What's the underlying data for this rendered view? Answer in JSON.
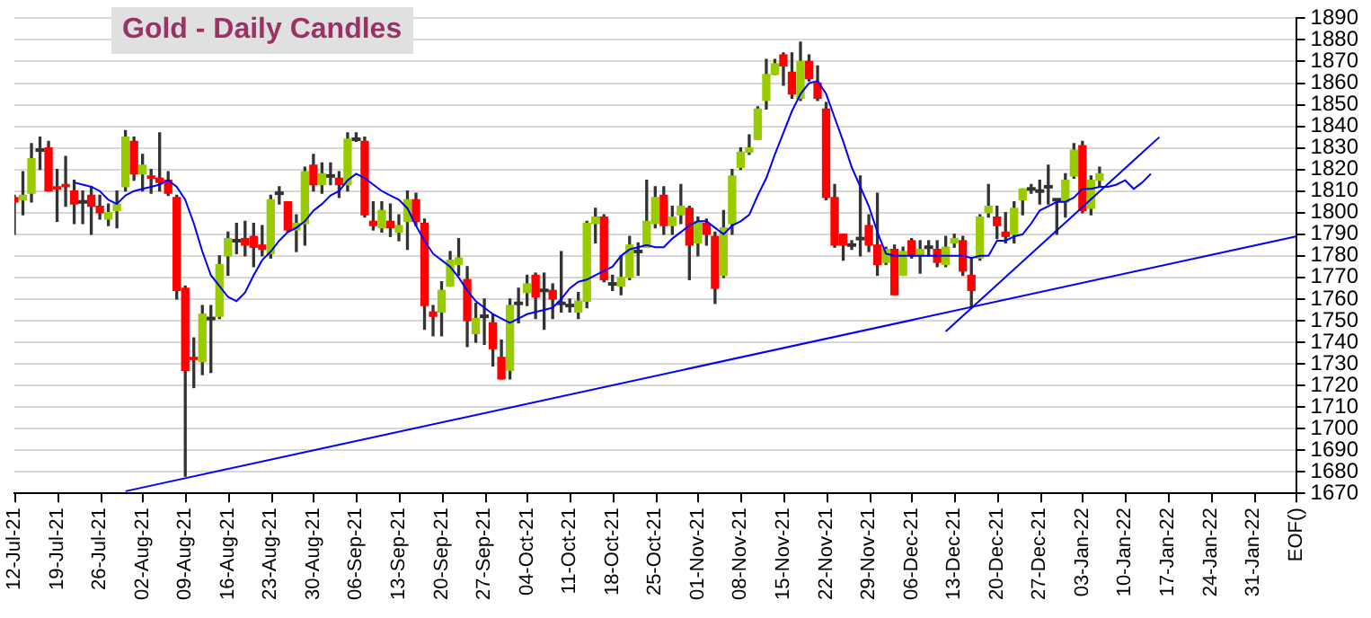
{
  "chart_data": {
    "type": "candlestick",
    "title": "Gold - Daily Candles",
    "categories": [
      "12-Jul-21",
      null,
      null,
      null,
      null,
      "19-Jul-21",
      null,
      null,
      null,
      null,
      "26-Jul-21",
      null,
      null,
      null,
      null,
      "02-Aug-21",
      null,
      null,
      null,
      null,
      "09-Aug-21",
      null,
      null,
      null,
      null,
      "16-Aug-21",
      null,
      null,
      null,
      null,
      "23-Aug-21",
      null,
      null,
      null,
      null,
      "30-Aug-21",
      null,
      null,
      null,
      null,
      "06-Sep-21",
      null,
      null,
      null,
      null,
      "13-Sep-21",
      null,
      null,
      null,
      null,
      "20-Sep-21",
      null,
      null,
      null,
      null,
      "27-Sep-21",
      null,
      null,
      null,
      null,
      "04-Oct-21",
      null,
      null,
      null,
      null,
      "11-Oct-21",
      null,
      null,
      null,
      null,
      "18-Oct-21",
      null,
      null,
      null,
      null,
      "25-Oct-21",
      null,
      null,
      null,
      null,
      "01-Nov-21",
      null,
      null,
      null,
      null,
      "08-Nov-21",
      null,
      null,
      null,
      null,
      "15-Nov-21",
      null,
      null,
      null,
      null,
      "22-Nov-21",
      null,
      null,
      null,
      null,
      "29-Nov-21",
      null,
      null,
      null,
      null,
      "06-Dec-21",
      null,
      null,
      null,
      null,
      "13-Dec-21",
      null,
      null,
      null,
      null,
      "20-Dec-21",
      null,
      null,
      null,
      null,
      "27-Dec-21",
      null,
      null,
      null,
      null,
      "03-Jan-22",
      null,
      null,
      null,
      null,
      "10-Jan-22",
      null,
      null,
      null,
      null,
      "17-Jan-22",
      null,
      null,
      null,
      null,
      "24-Jan-22",
      null,
      null,
      null,
      null,
      "31-Jan-22",
      null,
      null,
      null,
      null,
      "EOF()"
    ],
    "ohlc": [
      [
        1807,
        1808,
        1790,
        1805
      ],
      [
        1806,
        1819,
        1799,
        1808
      ],
      [
        1809,
        1832,
        1805,
        1825
      ],
      [
        1829,
        1835,
        1820,
        1829
      ],
      [
        1830,
        1833,
        1810,
        1810
      ],
      [
        1812,
        1820,
        1796,
        1811
      ],
      [
        1813,
        1826,
        1803,
        1812
      ],
      [
        1810,
        1815,
        1795,
        1804
      ],
      [
        1805,
        1810,
        1795,
        1805
      ],
      [
        1808,
        1812,
        1790,
        1803
      ],
      [
        1803,
        1808,
        1797,
        1800
      ],
      [
        1797,
        1804,
        1794,
        1800
      ],
      [
        1801,
        1810,
        1793,
        1804
      ],
      [
        1812,
        1838,
        1810,
        1835
      ],
      [
        1833,
        1835,
        1815,
        1818
      ],
      [
        1818,
        1827,
        1810,
        1822
      ],
      [
        1817,
        1820,
        1809,
        1816
      ],
      [
        1816,
        1837,
        1810,
        1814
      ],
      [
        1815,
        1819,
        1808,
        1809
      ],
      [
        1807,
        1808,
        1760,
        1764
      ],
      [
        1765,
        1766,
        1678,
        1727
      ],
      [
        1733,
        1742,
        1719,
        1732
      ],
      [
        1731,
        1757,
        1725,
        1753
      ],
      [
        1751,
        1757,
        1726,
        1751
      ],
      [
        1752,
        1780,
        1751,
        1776
      ],
      [
        1780,
        1791,
        1771,
        1788
      ],
      [
        1787,
        1795,
        1781,
        1787
      ],
      [
        1788,
        1796,
        1780,
        1785
      ],
      [
        1789,
        1795,
        1775,
        1784
      ],
      [
        1785,
        1794,
        1780,
        1783
      ],
      [
        1781,
        1808,
        1779,
        1806
      ],
      [
        1809,
        1812,
        1804,
        1809
      ],
      [
        1805,
        1805,
        1791,
        1792
      ],
      [
        1792,
        1799,
        1782,
        1795
      ],
      [
        1795,
        1821,
        1785,
        1819
      ],
      [
        1822,
        1827,
        1810,
        1813
      ],
      [
        1813,
        1823,
        1809,
        1818
      ],
      [
        1817,
        1823,
        1813,
        1817
      ],
      [
        1816,
        1819,
        1807,
        1813
      ],
      [
        1813,
        1837,
        1810,
        1834
      ],
      [
        1834,
        1837,
        1833,
        1834
      ],
      [
        1833,
        1835,
        1798,
        1799
      ],
      [
        1796,
        1805,
        1792,
        1794
      ],
      [
        1793,
        1805,
        1791,
        1801
      ],
      [
        1796,
        1804,
        1789,
        1793
      ],
      [
        1791,
        1799,
        1787,
        1794
      ],
      [
        1796,
        1810,
        1783,
        1806
      ],
      [
        1806,
        1809,
        1794,
        1796
      ],
      [
        1795,
        1797,
        1746,
        1757
      ],
      [
        1754,
        1757,
        1743,
        1752
      ],
      [
        1754,
        1768,
        1743,
        1764
      ],
      [
        1766,
        1782,
        1766,
        1778
      ],
      [
        1776,
        1788,
        1771,
        1779
      ],
      [
        1769,
        1775,
        1738,
        1750
      ],
      [
        1744,
        1758,
        1740,
        1751
      ],
      [
        1752,
        1760,
        1739,
        1752
      ],
      [
        1749,
        1753,
        1729,
        1737
      ],
      [
        1733,
        1741,
        1723,
        1723
      ],
      [
        1727,
        1760,
        1723,
        1757
      ],
      [
        1758,
        1765,
        1749,
        1758
      ],
      [
        1763,
        1771,
        1757,
        1767
      ],
      [
        1771,
        1772,
        1751,
        1761
      ],
      [
        1764,
        1772,
        1746,
        1764
      ],
      [
        1764,
        1767,
        1751,
        1760
      ],
      [
        1758,
        1782,
        1754,
        1758
      ],
      [
        1757,
        1760,
        1754,
        1757
      ],
      [
        1754,
        1763,
        1751,
        1759
      ],
      [
        1759,
        1796,
        1756,
        1795
      ],
      [
        1795,
        1802,
        1786,
        1798
      ],
      [
        1798,
        1799,
        1768,
        1769
      ],
      [
        1767,
        1771,
        1764,
        1767
      ],
      [
        1766,
        1780,
        1762,
        1770
      ],
      [
        1770,
        1789,
        1769,
        1785
      ],
      [
        1782,
        1786,
        1771,
        1782
      ],
      [
        1784,
        1815,
        1784,
        1796
      ],
      [
        1795,
        1812,
        1793,
        1807
      ],
      [
        1808,
        1812,
        1790,
        1794
      ],
      [
        1794,
        1803,
        1790,
        1798
      ],
      [
        1799,
        1813,
        1795,
        1803
      ],
      [
        1802,
        1803,
        1769,
        1785
      ],
      [
        1786,
        1798,
        1780,
        1796
      ],
      [
        1795,
        1797,
        1785,
        1790
      ],
      [
        1789,
        1791,
        1758,
        1765
      ],
      [
        1771,
        1801,
        1770,
        1793
      ],
      [
        1795,
        1820,
        1790,
        1817
      ],
      [
        1821,
        1830,
        1820,
        1828
      ],
      [
        1828,
        1836,
        1827,
        1830
      ],
      [
        1834,
        1849,
        1834,
        1848
      ],
      [
        1852,
        1871,
        1848,
        1864
      ],
      [
        1864,
        1871,
        1864,
        1869
      ],
      [
        1873,
        1874,
        1859,
        1868
      ],
      [
        1865,
        1874,
        1853,
        1855
      ],
      [
        1853,
        1879,
        1852,
        1870
      ],
      [
        1870,
        1873,
        1861,
        1862
      ],
      [
        1860,
        1868,
        1852,
        1853
      ],
      [
        1848,
        1851,
        1806,
        1807
      ],
      [
        1807,
        1813,
        1784,
        1785
      ],
      [
        1790,
        1790,
        1778,
        1785
      ],
      [
        1785,
        1787,
        1783,
        1785
      ],
      [
        1788,
        1817,
        1780,
        1788
      ],
      [
        1794,
        1799,
        1782,
        1785
      ],
      [
        1785,
        1809,
        1771,
        1776
      ],
      [
        1777,
        1784,
        1776,
        1783
      ],
      [
        1783,
        1785,
        1762,
        1762
      ],
      [
        1771,
        1784,
        1771,
        1782
      ],
      [
        1787,
        1788,
        1779,
        1780
      ],
      [
        1780,
        1787,
        1772,
        1783
      ],
      [
        1784,
        1787,
        1780,
        1784
      ],
      [
        1783,
        1787,
        1775,
        1777
      ],
      [
        1776,
        1789,
        1775,
        1784
      ],
      [
        1786,
        1790,
        1784,
        1788
      ],
      [
        1787,
        1789,
        1771,
        1773
      ],
      [
        1771,
        1779,
        1756,
        1764
      ],
      [
        1779,
        1799,
        1778,
        1798
      ],
      [
        1800,
        1813,
        1798,
        1803
      ],
      [
        1798,
        1803,
        1788,
        1794
      ],
      [
        1791,
        1800,
        1786,
        1789
      ],
      [
        1790,
        1805,
        1786,
        1802
      ],
      [
        1806,
        1811,
        1799,
        1811
      ],
      [
        1811,
        1813,
        1809,
        1811
      ],
      [
        1810,
        1815,
        1804,
        1810
      ],
      [
        1812,
        1822,
        1804,
        1812
      ],
      [
        1806,
        1806,
        1790,
        1806
      ],
      [
        1805,
        1818,
        1798,
        1815
      ],
      [
        1817,
        1832,
        1816,
        1829
      ],
      [
        1831,
        1833,
        1800,
        1801
      ],
      [
        1802,
        1817,
        1799,
        1815
      ],
      [
        1815,
        1821,
        1812,
        1818
      ],
      null,
      null,
      null,
      null,
      null,
      null,
      null,
      null,
      null,
      null,
      null,
      null,
      null,
      null,
      null,
      null,
      null,
      null,
      null,
      null,
      null,
      null,
      null
    ],
    "colors": [
      "#ff0000",
      "#99cc00",
      "#99cc00",
      "#333333",
      "#ff0000",
      "#ff0000",
      "#ff0000",
      "#ff0000",
      "#333333",
      "#ff0000",
      "#ff0000",
      "#99cc00",
      "#99cc00",
      "#99cc00",
      "#ff0000",
      "#99cc00",
      "#ff0000",
      "#ff0000",
      "#ff0000",
      "#ff0000",
      "#ff0000",
      "#ff0000",
      "#99cc00",
      "#333333",
      "#99cc00",
      "#99cc00",
      "#333333",
      "#ff0000",
      "#ff0000",
      "#ff0000",
      "#99cc00",
      "#333333",
      "#ff0000",
      "#99cc00",
      "#99cc00",
      "#ff0000",
      "#99cc00",
      "#333333",
      "#ff0000",
      "#99cc00",
      "#333333",
      "#ff0000",
      "#ff0000",
      "#99cc00",
      "#ff0000",
      "#99cc00",
      "#99cc00",
      "#ff0000",
      "#ff0000",
      "#ff0000",
      "#99cc00",
      "#99cc00",
      "#99cc00",
      "#ff0000",
      "#99cc00",
      "#333333",
      "#ff0000",
      "#ff0000",
      "#99cc00",
      "#333333",
      "#99cc00",
      "#ff0000",
      "#333333",
      "#ff0000",
      "#333333",
      "#333333",
      "#99cc00",
      "#99cc00",
      "#99cc00",
      "#ff0000",
      "#333333",
      "#99cc00",
      "#99cc00",
      "#333333",
      "#99cc00",
      "#99cc00",
      "#ff0000",
      "#99cc00",
      "#99cc00",
      "#ff0000",
      "#99cc00",
      "#ff0000",
      "#ff0000",
      "#99cc00",
      "#99cc00",
      "#99cc00",
      "#99cc00",
      "#99cc00",
      "#99cc00",
      "#99cc00",
      "#ff0000",
      "#ff0000",
      "#99cc00",
      "#ff0000",
      "#ff0000",
      "#ff0000",
      "#ff0000",
      "#ff0000",
      "#333333",
      "#333333",
      "#ff0000",
      "#ff0000",
      "#99cc00",
      "#ff0000",
      "#99cc00",
      "#ff0000",
      "#99cc00",
      "#333333",
      "#ff0000",
      "#99cc00",
      "#99cc00",
      "#ff0000",
      "#ff0000",
      "#99cc00",
      "#99cc00",
      "#ff0000",
      "#ff0000",
      "#99cc00",
      "#99cc00",
      "#333333",
      "#333333",
      "#333333",
      "#333333",
      "#99cc00",
      "#99cc00",
      "#ff0000",
      "#99cc00",
      "#99cc00",
      null,
      null,
      null,
      null,
      null,
      null,
      null,
      null,
      null,
      null,
      null,
      null,
      null,
      null,
      null,
      null,
      null,
      null,
      null,
      null,
      null,
      null,
      null
    ],
    "series": [
      {
        "type": "line",
        "color": "#0000ff",
        "values": [
          null,
          null,
          null,
          null,
          null,
          null,
          null,
          1814,
          1813,
          1812,
          1810,
          1806,
          1804,
          1808,
          1810,
          1811,
          1812,
          1813,
          1815,
          1812,
          1806,
          1795,
          1782,
          1771,
          1766,
          1761,
          1759,
          1763,
          1771,
          1778,
          1782,
          1787,
          1791,
          1793,
          1796,
          1801,
          1804,
          1808,
          1810,
          1815,
          1818,
          1816,
          1813,
          1810,
          1808,
          1806,
          1802,
          1794,
          1787,
          1781,
          1778,
          1775,
          1770,
          1764,
          1759,
          1756,
          1753,
          1751,
          1749,
          1751,
          1753,
          1754,
          1755,
          1756,
          1760,
          1765,
          1768,
          1769,
          1771,
          1773,
          1775,
          1780,
          1783,
          1784,
          1785,
          1784,
          1784,
          1788,
          1791,
          1794,
          1796,
          1796,
          1793,
          1790,
          1794,
          1796,
          1799,
          1808,
          1816,
          1827,
          1837,
          1847,
          1855,
          1860,
          1861,
          1855,
          1844,
          1833,
          1821,
          1812,
          1803,
          1791,
          1781,
          1780,
          1780,
          1780,
          1780,
          1780,
          1780,
          1780,
          1780,
          1780,
          1779,
          1780,
          1780,
          1787,
          1787,
          1789,
          1790,
          1795,
          1801,
          1803,
          1805,
          1805,
          1807,
          1811,
          1811,
          1812,
          1812,
          1813,
          1815,
          1811,
          1814,
          1818,
          null,
          null,
          null,
          null,
          null,
          null,
          null,
          null,
          null,
          null,
          null,
          null,
          null,
          null,
          null,
          null,
          null
        ]
      },
      {
        "type": "line",
        "color": "#0000ff",
        "values": [
          null,
          null,
          null,
          null,
          null,
          null,
          null,
          null,
          null,
          null,
          null,
          null,
          null,
          1671,
          null,
          null,
          null,
          null,
          null,
          null,
          null,
          null,
          null,
          null,
          null,
          null,
          null,
          null,
          null,
          null,
          null,
          null,
          null,
          null,
          null,
          null,
          null,
          null,
          null,
          null,
          null,
          null,
          null,
          null,
          null,
          null,
          null,
          null,
          null,
          null,
          null,
          null,
          null,
          null,
          null,
          null,
          null,
          null,
          null,
          null,
          null,
          null,
          null,
          null,
          null,
          null,
          null,
          null,
          null,
          null,
          null,
          null,
          null,
          null,
          null,
          null,
          null,
          null,
          null,
          null,
          null,
          null,
          null,
          null,
          null,
          null,
          null,
          null,
          null,
          null,
          null,
          null,
          null,
          null,
          null,
          null,
          null,
          null,
          null,
          null,
          null,
          null,
          null,
          null,
          null,
          null,
          null,
          null,
          null,
          null,
          null,
          null,
          null,
          null,
          null,
          null,
          null,
          null,
          null,
          null,
          null,
          null,
          null,
          null,
          null,
          null,
          null,
          null,
          null,
          null,
          null,
          null,
          null,
          null,
          null,
          null,
          null,
          null,
          null,
          null,
          null,
          null,
          null,
          null,
          null,
          null,
          null,
          null,
          null,
          null,
          1789
        ]
      },
      {
        "type": "line",
        "color": "#0000ff",
        "values": [
          null,
          null,
          null,
          null,
          null,
          null,
          null,
          null,
          null,
          null,
          null,
          null,
          null,
          null,
          null,
          null,
          null,
          null,
          null,
          null,
          null,
          null,
          null,
          null,
          null,
          null,
          null,
          null,
          null,
          null,
          null,
          null,
          null,
          null,
          null,
          null,
          null,
          null,
          null,
          null,
          null,
          null,
          null,
          null,
          null,
          null,
          null,
          null,
          null,
          null,
          null,
          null,
          null,
          null,
          null,
          null,
          null,
          null,
          null,
          null,
          null,
          null,
          null,
          null,
          null,
          null,
          null,
          null,
          null,
          null,
          null,
          null,
          null,
          null,
          null,
          null,
          null,
          null,
          null,
          null,
          null,
          null,
          null,
          null,
          null,
          null,
          null,
          null,
          null,
          null,
          null,
          null,
          null,
          null,
          null,
          null,
          null,
          null,
          null,
          null,
          null,
          null,
          null,
          null,
          null,
          null,
          null,
          null,
          null,
          1745,
          null,
          null,
          null,
          null,
          null,
          null,
          null,
          null,
          null,
          null,
          null,
          null,
          null,
          null,
          null,
          null,
          null,
          null,
          null,
          null,
          null,
          null,
          null,
          null,
          1835,
          null,
          null,
          null,
          null,
          null,
          null,
          null,
          null,
          null,
          null,
          null,
          null,
          null,
          null,
          null,
          null
        ]
      }
    ],
    "ylim": [
      1670,
      1890
    ],
    "yticks": [
      1670,
      1680,
      1690,
      1700,
      1710,
      1720,
      1730,
      1740,
      1750,
      1760,
      1770,
      1780,
      1790,
      1800,
      1810,
      1820,
      1830,
      1840,
      1850,
      1860,
      1870,
      1880,
      1890
    ],
    "grid": "y",
    "legend": false
  }
}
